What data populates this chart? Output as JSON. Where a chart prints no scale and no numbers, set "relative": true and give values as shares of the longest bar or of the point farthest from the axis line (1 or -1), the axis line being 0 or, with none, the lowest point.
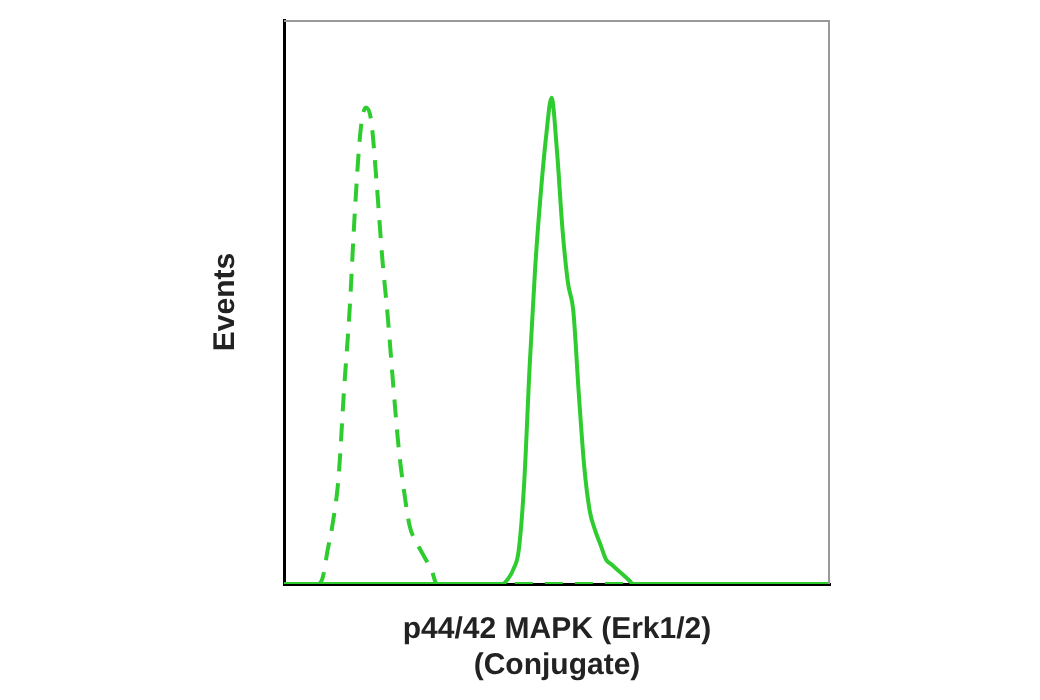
{
  "chart_data": {
    "type": "line",
    "relative": true,
    "xlabel": "p44/42 MAPK (Erk1/2)\n(Conjugate)",
    "ylabel": "Events",
    "tick_labels": false,
    "grid": false,
    "legend": false,
    "marker": "none",
    "categories": [
      null,
      null,
      null,
      null,
      null,
      null,
      null,
      null,
      null,
      null,
      null,
      null,
      null,
      null,
      null,
      null,
      null,
      null,
      null,
      null,
      null,
      null,
      null,
      null,
      null,
      null,
      null,
      null,
      null,
      null,
      null,
      null,
      null,
      null,
      null,
      null,
      null,
      null,
      null,
      null,
      null,
      null,
      null,
      null,
      null,
      null,
      null,
      null,
      null,
      null,
      null,
      null,
      null,
      null,
      null,
      null,
      null,
      null,
      null,
      null,
      null,
      null,
      null,
      null,
      null,
      null,
      null,
      null,
      null,
      null,
      null,
      null,
      null,
      null,
      null,
      null,
      null,
      null,
      null,
      null,
      null,
      null,
      null,
      null,
      null,
      null,
      null,
      null,
      null,
      null,
      null,
      null,
      null,
      null,
      null,
      null,
      null,
      null,
      null,
      null,
      null
    ],
    "series": [
      {
        "color": "#2ecc2e",
        "line_style": "dashed",
        "values": [
          0,
          0,
          0,
          0,
          0,
          0,
          0,
          0.01,
          0.07,
          0.13,
          0.22,
          0.4,
          0.56,
          0.77,
          0.93,
          0.98,
          0.95,
          0.82,
          0.67,
          0.55,
          0.41,
          0.28,
          0.19,
          0.12,
          0.09,
          0.07,
          0.05,
          0.03,
          0,
          0,
          0,
          0,
          0,
          0,
          0,
          0,
          0,
          0,
          0,
          0,
          0,
          0,
          0,
          0,
          0,
          0,
          0,
          0,
          0,
          0,
          0,
          0,
          0,
          0,
          0,
          0,
          0,
          0,
          0,
          0,
          0,
          0,
          0,
          0,
          0,
          0,
          0,
          0,
          0,
          0,
          0,
          0,
          0,
          0,
          0,
          0,
          0,
          0,
          0,
          0,
          0,
          0,
          0,
          0,
          0,
          0,
          0,
          0,
          0,
          0,
          0,
          0,
          0,
          0,
          0,
          0,
          0,
          0,
          0,
          0,
          0
        ]
      },
      {
        "color": "#2ecc2e",
        "line_style": "solid",
        "values": [
          0,
          0,
          0,
          0,
          0,
          0,
          0,
          0,
          0,
          0,
          0,
          0,
          0,
          0,
          0,
          0,
          0,
          0,
          0,
          0,
          0,
          0,
          0,
          0,
          0,
          0,
          0,
          0,
          0,
          0,
          0,
          0,
          0,
          0,
          0,
          0,
          0,
          0,
          0,
          0,
          0,
          0.01,
          0.03,
          0.07,
          0.21,
          0.45,
          0.65,
          0.8,
          0.92,
          1,
          0.89,
          0.73,
          0.62,
          0.56,
          0.39,
          0.24,
          0.15,
          0.11,
          0.08,
          0.05,
          0.04,
          0.03,
          0.02,
          0.01,
          0,
          0,
          0,
          0,
          0,
          0,
          0,
          0,
          0,
          0,
          0,
          0,
          0,
          0,
          0,
          0,
          0,
          0,
          0,
          0,
          0,
          0,
          0,
          0,
          0,
          0,
          0,
          0,
          0,
          0,
          0,
          0,
          0,
          0,
          0,
          0,
          0
        ]
      }
    ]
  }
}
